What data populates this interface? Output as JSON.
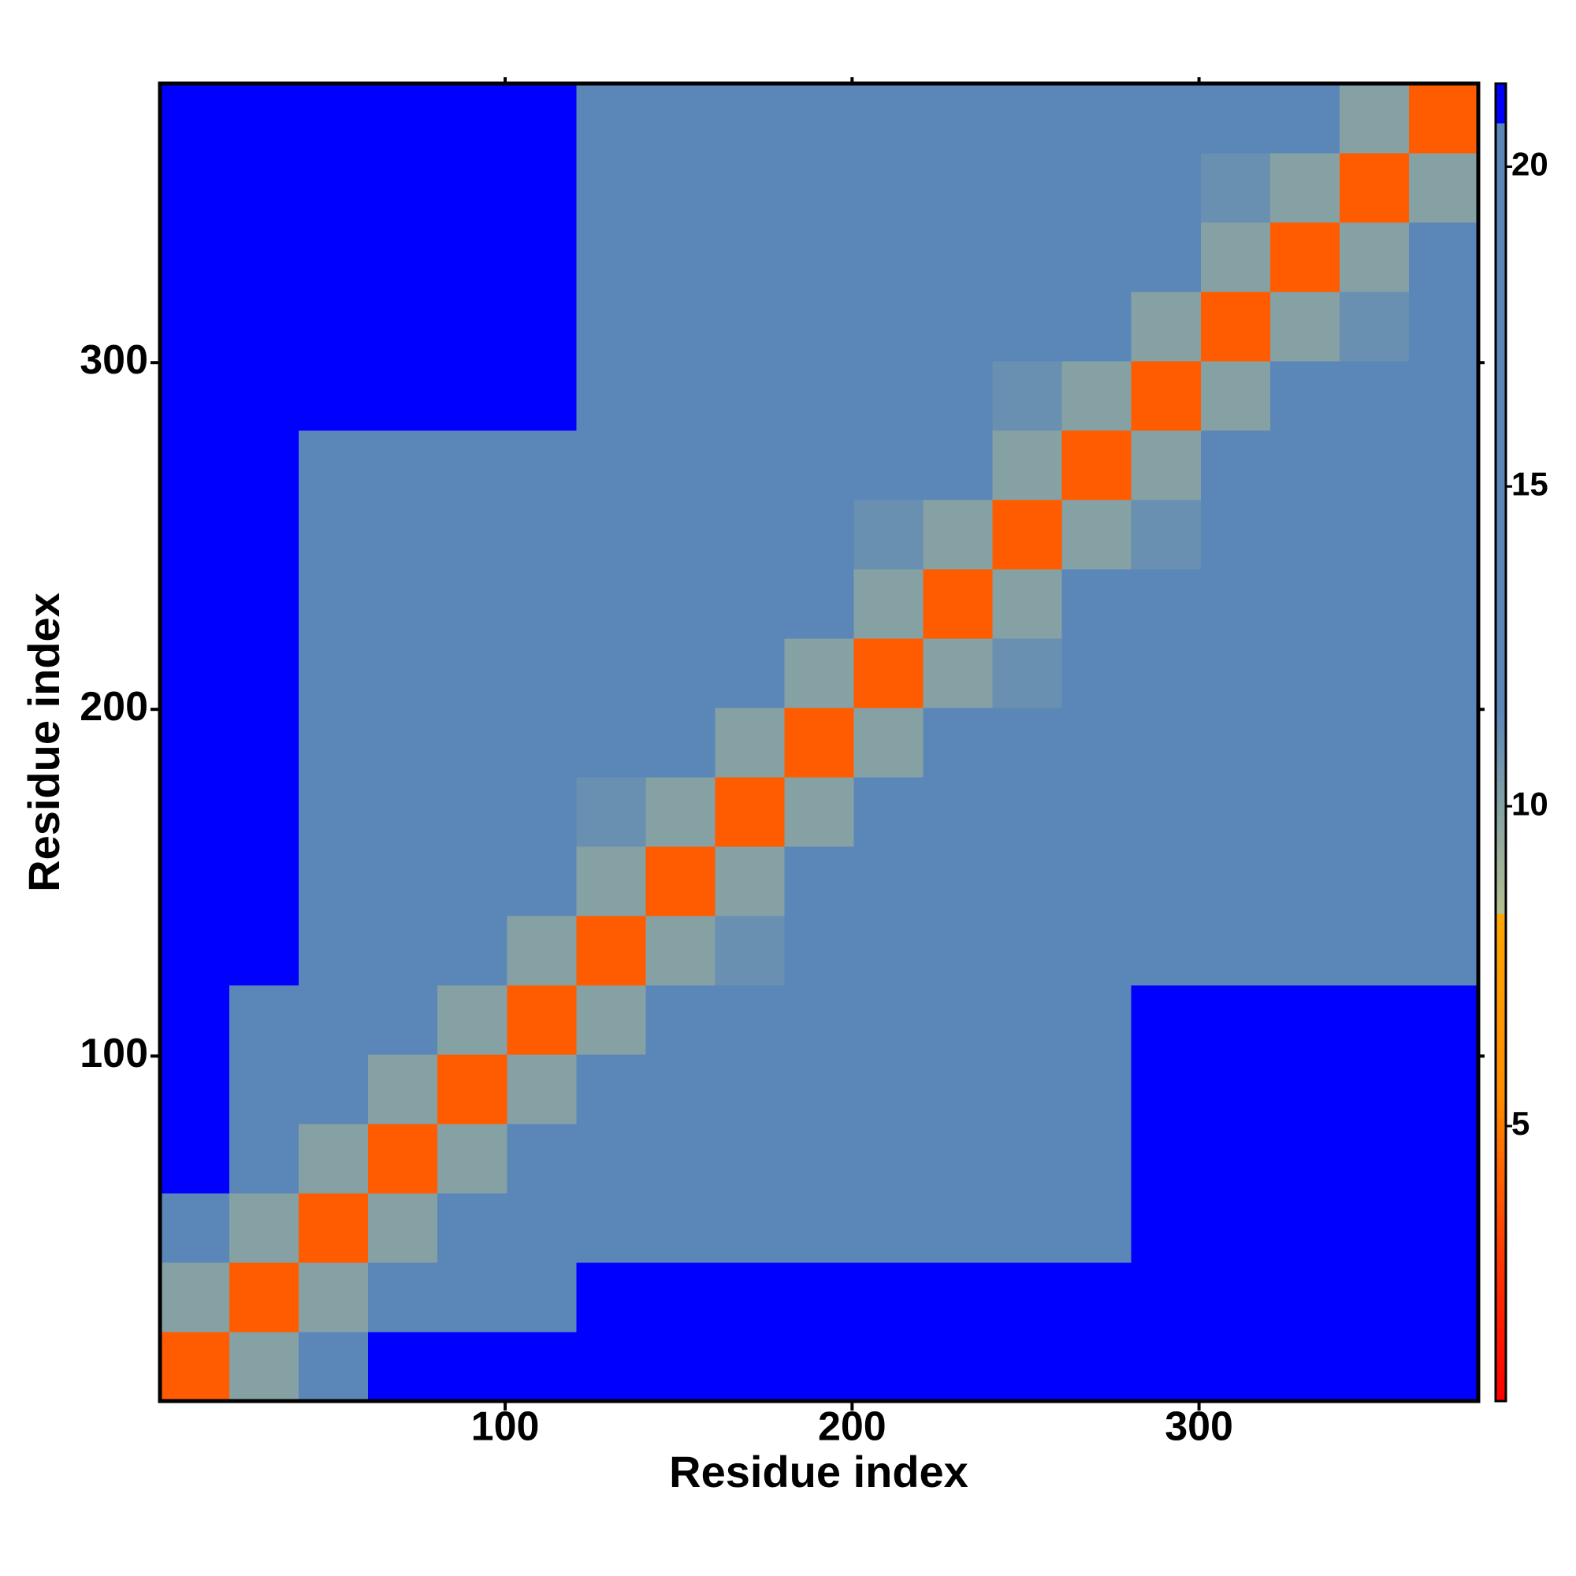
{
  "chart_data": {
    "type": "heatmap",
    "x_label": "Residue index",
    "y_label": "Residue index",
    "xbins": [
      0.5,
      20.5,
      40.5,
      60.5,
      80.5,
      100.5,
      120.5,
      140.5,
      160.5,
      180.5,
      200.5,
      220.5,
      240.5,
      260.5,
      280.5,
      300.5,
      320.5,
      340.5,
      360.5,
      380.5
    ],
    "ybins": [
      0.5,
      20.5,
      40.5,
      60.5,
      80.5,
      100.5,
      120.5,
      140.5,
      160.5,
      180.5,
      200.5,
      220.5,
      240.5,
      260.5,
      280.5,
      300.5,
      320.5,
      340.5,
      360.5,
      380.5
    ],
    "z": [
      [
        4,
        10,
        14,
        21,
        21,
        21,
        21,
        21,
        21,
        21,
        21,
        21,
        21,
        21,
        21,
        21,
        21,
        21,
        21
      ],
      [
        10,
        4,
        10,
        14,
        12,
        16,
        21,
        21,
        21,
        21,
        21,
        21,
        21,
        21,
        21,
        21,
        21,
        21,
        21
      ],
      [
        14,
        10,
        4,
        10,
        14,
        13,
        15,
        15,
        15,
        15,
        15,
        15,
        18,
        18,
        21,
        21,
        21,
        21,
        21
      ],
      [
        21,
        14,
        10,
        4,
        10,
        14,
        15,
        15,
        15,
        15,
        15,
        15,
        18,
        18,
        21,
        21,
        21,
        21,
        21
      ],
      [
        21,
        12,
        14,
        10,
        4,
        10,
        14,
        15,
        15,
        15,
        15,
        15,
        18,
        18,
        21,
        21,
        21,
        21,
        21
      ],
      [
        21,
        16,
        13,
        14,
        10,
        4,
        10,
        14,
        15,
        15,
        15,
        15,
        18,
        18,
        21,
        21,
        21,
        21,
        21
      ],
      [
        21,
        21,
        15,
        15,
        14,
        10,
        4,
        10,
        11,
        15,
        15,
        15,
        19,
        15,
        17,
        17,
        17,
        17,
        17
      ],
      [
        21,
        21,
        15,
        15,
        15,
        14,
        10,
        4,
        10,
        14,
        20,
        12,
        15,
        15,
        15,
        15,
        15,
        13,
        15
      ],
      [
        21,
        21,
        15,
        15,
        15,
        15,
        11,
        10,
        4,
        10,
        12,
        15,
        15,
        15,
        15,
        15,
        15,
        15,
        18
      ],
      [
        21,
        21,
        15,
        15,
        15,
        15,
        15,
        14,
        10,
        4,
        10,
        12,
        15,
        15,
        15,
        15,
        15,
        13,
        18
      ],
      [
        21,
        21,
        15,
        15,
        15,
        15,
        15,
        20,
        12,
        10,
        4,
        10,
        11,
        15,
        15,
        15,
        12,
        15,
        18
      ],
      [
        21,
        21,
        15,
        15,
        15,
        15,
        15,
        12,
        15,
        12,
        10,
        4,
        10,
        12,
        19,
        15,
        15,
        15,
        18
      ],
      [
        21,
        21,
        18,
        18,
        18,
        18,
        19,
        15,
        15,
        15,
        11,
        10,
        4,
        10,
        11,
        20,
        15,
        15,
        18
      ],
      [
        21,
        21,
        18,
        18,
        18,
        18,
        15,
        15,
        15,
        15,
        15,
        12,
        10,
        4,
        10,
        14,
        15,
        20,
        18
      ],
      [
        21,
        21,
        21,
        21,
        21,
        21,
        17,
        15,
        15,
        15,
        15,
        19,
        11,
        10,
        4,
        10,
        14,
        15,
        18
      ],
      [
        21,
        21,
        21,
        21,
        21,
        21,
        17,
        15,
        15,
        15,
        15,
        15,
        20,
        14,
        10,
        4,
        10,
        11,
        18
      ],
      [
        21,
        21,
        21,
        21,
        21,
        21,
        17,
        15,
        15,
        15,
        12,
        15,
        15,
        15,
        14,
        10,
        4,
        10,
        13
      ],
      [
        21,
        21,
        21,
        21,
        21,
        21,
        17,
        13,
        15,
        13,
        15,
        15,
        15,
        20,
        15,
        11,
        10,
        4,
        10
      ],
      [
        21,
        21,
        21,
        21,
        21,
        21,
        17,
        15,
        18,
        18,
        18,
        18,
        18,
        18,
        18,
        18,
        13,
        10,
        4
      ]
    ],
    "xlim": [
      0.5,
      380.5
    ],
    "ylim": [
      0.5,
      380.5
    ],
    "xticks": [
      100,
      200,
      300
    ],
    "yticks": [
      100,
      200,
      300
    ],
    "zlim": [
      0.7,
      21.3
    ],
    "zticks": [
      5,
      10,
      15,
      20
    ],
    "colorscale": [
      [
        0.7,
        "#ff0000"
      ],
      [
        3,
        "#ff3a00"
      ],
      [
        5.5,
        "#ff8c00"
      ],
      [
        8.3,
        "#ffa500"
      ],
      [
        8.3,
        "#b4c08e"
      ],
      [
        11.5,
        "#5b86b8"
      ],
      [
        20.7,
        "#5b86b8"
      ],
      [
        20.7,
        "#0000ff"
      ],
      [
        21.3,
        "#0000ff"
      ]
    ]
  }
}
